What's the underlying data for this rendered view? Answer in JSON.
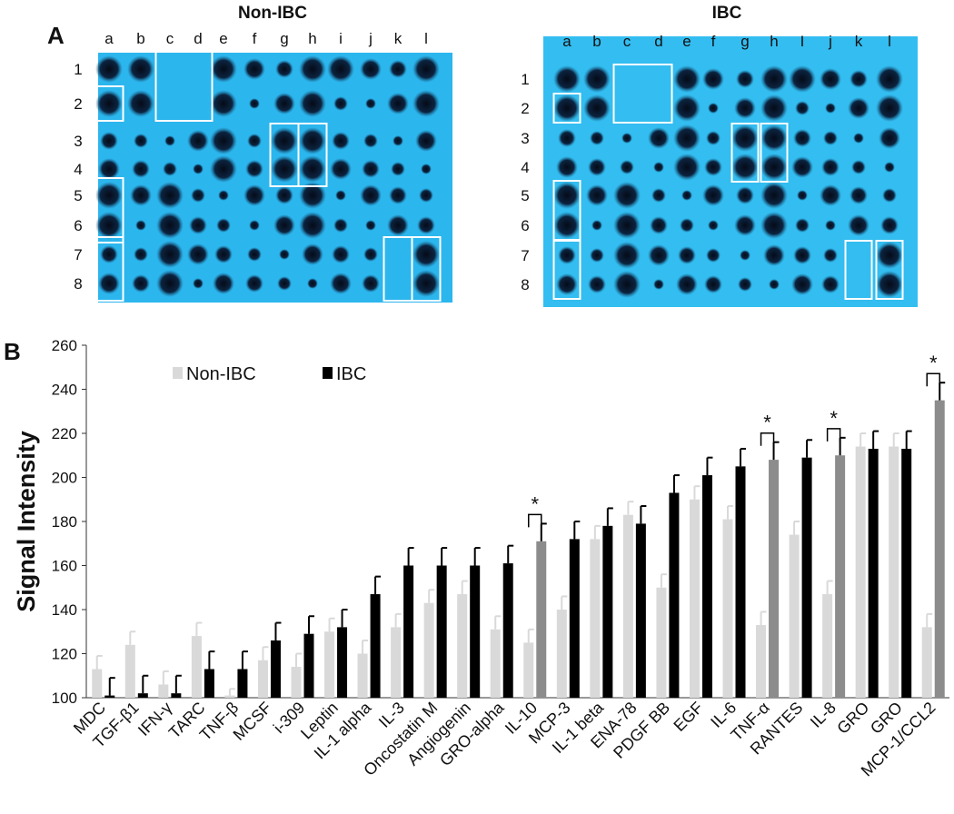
{
  "figure_a": {
    "label": "A",
    "panels": [
      {
        "title": "Non-IBC",
        "columns": [
          "a",
          "b",
          "c",
          "d",
          "e",
          "f",
          "g",
          "h",
          "i",
          "j",
          "k",
          "l"
        ],
        "rows": [
          "1",
          "2",
          "3",
          "4",
          "5",
          "6",
          "7",
          "8"
        ]
      },
      {
        "title": "IBC",
        "columns": [
          "a",
          "b",
          "c",
          "d",
          "e",
          "f",
          "g",
          "h",
          "I",
          "j",
          "k",
          "l"
        ],
        "rows": [
          "1",
          "2",
          "3",
          "4",
          "5",
          "6",
          "7",
          "8"
        ]
      }
    ]
  },
  "chart_data": {
    "type": "bar",
    "label": "B",
    "y_label": "Signal Intensity",
    "categories": [
      "MDC",
      "TGF-β1",
      "IFN-γ",
      "TARC",
      "TNF-β",
      "MCSF",
      "i-309",
      "Leptin",
      "IL-1 alpha",
      "IL-3",
      "Oncostatin M",
      "Angiogenin",
      "GRO-alpha",
      "IL-10",
      "MCP-3",
      "IL-1 beta",
      "ENA-78",
      "PDGF BB",
      "EGF",
      "IL-6",
      "TNF-α",
      "RANTES",
      "IL-8",
      "GRO",
      "GRO",
      "MCP-1/CCL2"
    ],
    "series": [
      {
        "name": "Non-IBC",
        "color": "#d9d9d9",
        "values": [
          113,
          124,
          106,
          128,
          101,
          117,
          114,
          130,
          120,
          132,
          143,
          147,
          131,
          125,
          140,
          172,
          183,
          150,
          190,
          181,
          133,
          174,
          147,
          214,
          214,
          132
        ],
        "errors": [
          6,
          6,
          6,
          6,
          3,
          6,
          6,
          6,
          6,
          6,
          6,
          6,
          6,
          6,
          6,
          6,
          6,
          6,
          6,
          6,
          6,
          6,
          6,
          6,
          6,
          6
        ]
      },
      {
        "name": "IBC",
        "color": "#000000",
        "colors": [
          "#000000",
          "#000000",
          "#000000",
          "#000000",
          "#000000",
          "#000000",
          "#000000",
          "#000000",
          "#000000",
          "#000000",
          "#000000",
          "#000000",
          "#000000",
          "#8c8c8c",
          "#000000",
          "#000000",
          "#000000",
          "#000000",
          "#000000",
          "#000000",
          "#8c8c8c",
          "#000000",
          "#8c8c8c",
          "#000000",
          "#000000",
          "#8c8c8c"
        ],
        "values": [
          101,
          102,
          102,
          113,
          113,
          126,
          129,
          132,
          147,
          160,
          160,
          160,
          161,
          171,
          172,
          178,
          179,
          193,
          201,
          205,
          208,
          209,
          210,
          213,
          213,
          235
        ],
        "errors": [
          8,
          8,
          8,
          8,
          8,
          8,
          8,
          8,
          8,
          8,
          8,
          8,
          8,
          8,
          8,
          8,
          8,
          8,
          8,
          8,
          8,
          8,
          8,
          8,
          8,
          8
        ]
      }
    ],
    "ylim": [
      100,
      260
    ],
    "yticks": [
      100,
      120,
      140,
      160,
      180,
      200,
      220,
      240,
      260
    ],
    "annotations": [
      {
        "text": "*",
        "category": "IL-10"
      },
      {
        "text": "*",
        "category": "TNF-α"
      },
      {
        "text": "*",
        "category": "IL-8"
      },
      {
        "text": "*",
        "category": "MCP-1/CCL2"
      }
    ]
  }
}
